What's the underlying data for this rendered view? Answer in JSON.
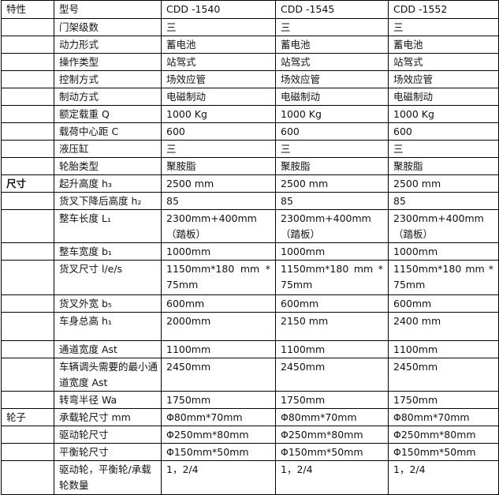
{
  "header": {
    "category": "特性",
    "model_label": "型号",
    "models": [
      "CDD -1540",
      "CDD -1545",
      "CDD -1552"
    ]
  },
  "rows": [
    {
      "cat": "",
      "label": "门架级数",
      "values": [
        "三",
        "三",
        "三"
      ]
    },
    {
      "cat": "",
      "label": "动力形式",
      "values": [
        "蓄电池",
        "蓄电池",
        "蓄电池"
      ]
    },
    {
      "cat": "",
      "label": "操作类型",
      "values": [
        "站驾式",
        "站驾式",
        "站驾式"
      ]
    },
    {
      "cat": "",
      "label": "控制方式",
      "values": [
        "场效应管",
        "场效应管",
        "场效应管"
      ]
    },
    {
      "cat": "",
      "label": "制动方式",
      "values": [
        "电磁制动",
        "电磁制动",
        "电磁制动"
      ]
    },
    {
      "cat": "",
      "label": "额定载重 Q",
      "values": [
        "1000 Kg",
        "1000 Kg",
        "1000 Kg"
      ]
    },
    {
      "cat": "",
      "label": "载荷中心距 C",
      "values": [
        "600",
        "600",
        "600"
      ]
    },
    {
      "cat": "",
      "label": "液压缸",
      "values": [
        "三",
        "三",
        "三"
      ]
    },
    {
      "cat": "",
      "label": "轮胎类型",
      "values": [
        "聚胺脂",
        "聚胺脂",
        "聚胺脂"
      ]
    },
    {
      "cat": "尺寸",
      "label": "起升高度 h₃",
      "values": [
        "2500 mm",
        "2500 mm",
        "2500 mm"
      ]
    },
    {
      "cat": "",
      "label": "货叉下降后高度 h₂",
      "values": [
        "85",
        "85",
        "85"
      ]
    },
    {
      "cat": "",
      "label": "整车长度 L₁",
      "values": [
        "2300mm+400mm（踏板）",
        "2300mm+400mm（踏板）",
        "2300mm+400mm（踏板）"
      ]
    },
    {
      "cat": "",
      "label": "整车宽度 b₁",
      "values": [
        "1000mm",
        "1000mm",
        "1000mm"
      ]
    },
    {
      "cat": "",
      "label": "货叉尺寸 l/e/s",
      "values": [
        "1150mm*180 mm *75mm",
        "1150mm*180 mm *75mm",
        "1150mm*180 mm *75mm"
      ]
    },
    {
      "cat": "",
      "label": "货叉外宽 b₅",
      "values": [
        "600mm",
        "600mm",
        "600mm"
      ]
    },
    {
      "cat": "",
      "label": "车身总高 h₁",
      "values": [
        "2000mm",
        "2150 mm",
        "2400 mm"
      ]
    },
    {
      "cat": "",
      "label": "通道宽度 Ast",
      "values": [
        "1100mm",
        "1100mm",
        "1100mm"
      ]
    },
    {
      "cat": "",
      "label": "车辆调头需要的最小通道宽度 Ast",
      "values": [
        "2450mm",
        "2450mm",
        "2450mm"
      ]
    },
    {
      "cat": "",
      "label": "转弯半径 Wa",
      "values": [
        "1750mm",
        "1750mm",
        "1750mm"
      ]
    },
    {
      "cat": "轮子",
      "label": "承载轮尺寸 mm",
      "values": [
        "Φ80mm*70mm",
        "Φ80mm*70mm",
        "Φ80mm*70mm"
      ]
    },
    {
      "cat": "",
      "label": "驱动轮尺寸",
      "values": [
        "Φ250mm*80mm",
        "Φ250mm*80mm",
        "Φ250mm*80mm"
      ]
    },
    {
      "cat": "",
      "label": "平衡轮尺寸",
      "values": [
        "Φ150mm*50mm",
        "Φ150mm*50mm",
        "Φ150mm*50mm"
      ]
    },
    {
      "cat": "",
      "label": "驱动轮，平衡轮/承载轮数量",
      "values": [
        "1，2/4",
        "1，2/4",
        "1，2/4"
      ]
    }
  ]
}
